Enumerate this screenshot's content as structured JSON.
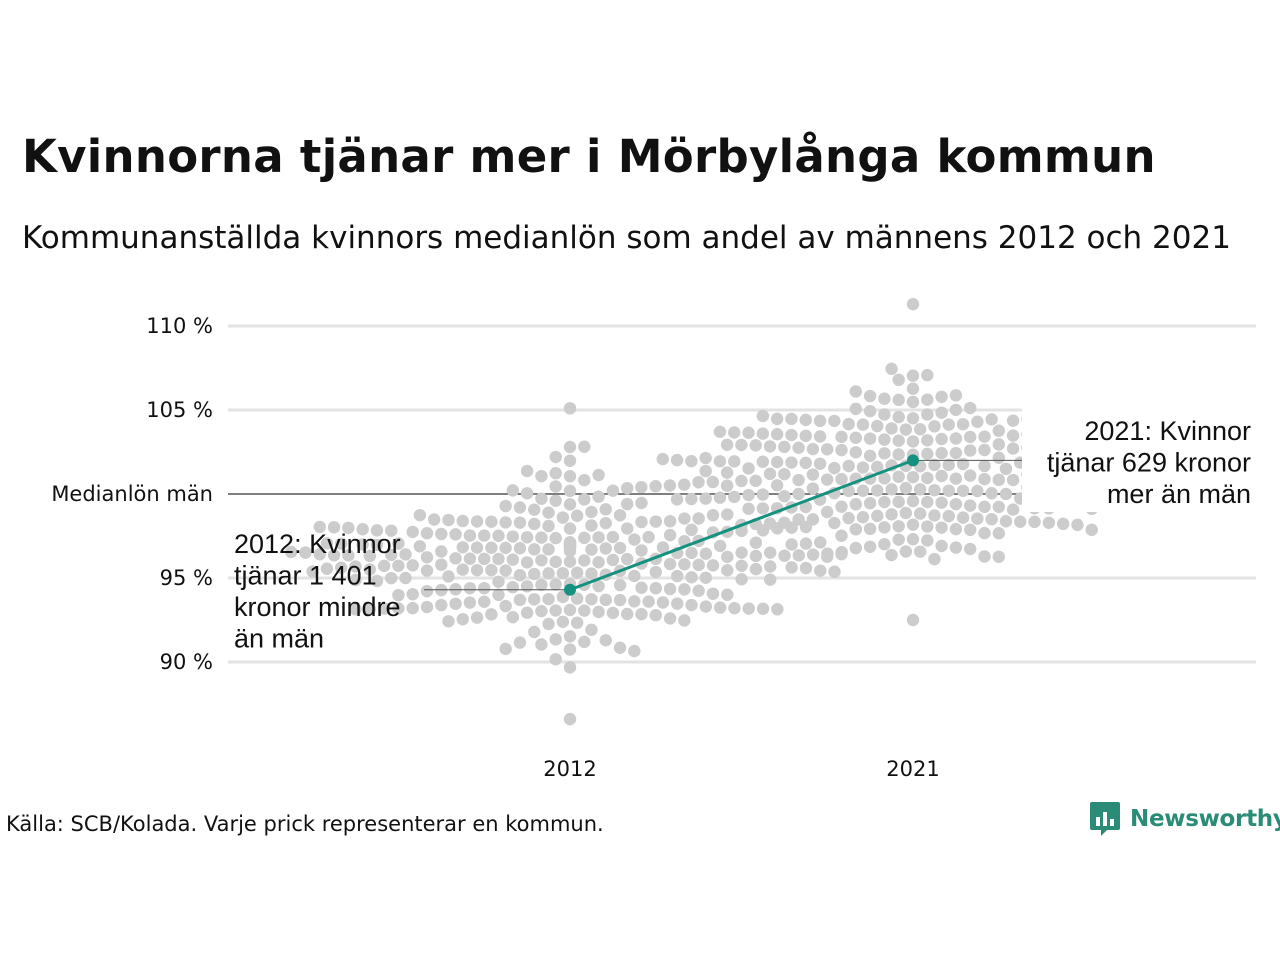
{
  "title": "Kvinnorna tjänar mer i Mörbylånga kommun",
  "subtitle": "Kommunanställda kvinnors medianlön som andel av männens 2012 och 2021",
  "source": "Källa: SCB/Kolada. Varje prick representerar en kommun.",
  "brand": {
    "name": "Newsworthy",
    "logo_icon": "bar-chart-speech-bubble-icon"
  },
  "colors": {
    "dots": "#cccccc",
    "highlight": "#16917f",
    "grid": "#e3e3e3",
    "reference_line": "#333333",
    "brand": "#2a8c77"
  },
  "chart_data": {
    "type": "scatter",
    "subtype": "beeswarm",
    "categories": [
      "2012",
      "2021"
    ],
    "y_unit": "%",
    "ylim": [
      86,
      111.5
    ],
    "y_ticks": [
      {
        "value": 90,
        "label": "90 %"
      },
      {
        "value": 95,
        "label": "95 %"
      },
      {
        "value": 100,
        "label": "Medianlön män"
      },
      {
        "value": 105,
        "label": "105 %"
      },
      {
        "value": 110,
        "label": "110 %"
      }
    ],
    "reference_line": {
      "value": 100,
      "label": "Medianlön män"
    },
    "grid": true,
    "legend": "none",
    "distributions": [
      {
        "category": "2012",
        "min": 86.6,
        "max": 105.1,
        "center": 96.0,
        "count": 290
      },
      {
        "category": "2021",
        "min": 92.5,
        "max": 111.3,
        "center": 101.0,
        "count": 290
      }
    ],
    "highlight": {
      "name": "Mörbylånga",
      "values": [
        {
          "category": "2012",
          "y": 94.3
        },
        {
          "category": "2021",
          "y": 102.0
        }
      ]
    },
    "annotations": [
      {
        "category": "2012",
        "y": 94.3,
        "lines": [
          "2012: Kvinnor",
          "tjänar 1 401",
          "kronor mindre",
          "än män"
        ]
      },
      {
        "category": "2021",
        "y": 102.0,
        "lines": [
          "2021: Kvinnor",
          "tjänar 629 kronor",
          "mer än män"
        ]
      }
    ]
  }
}
